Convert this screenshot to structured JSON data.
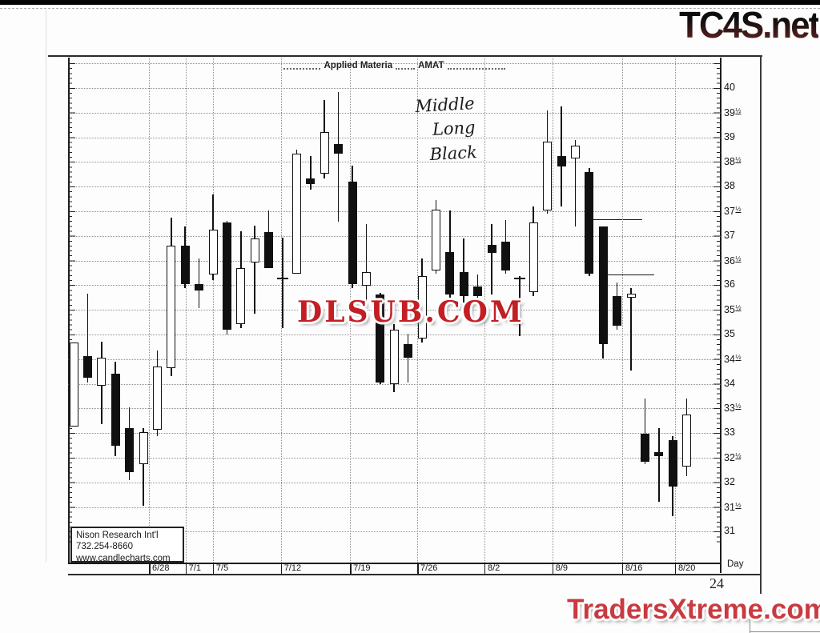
{
  "branding": {
    "tc4s": "TC4S.net",
    "watermark": "DLSUB.COM",
    "traders": "TradersXtreme.com",
    "page_number": "24"
  },
  "annotation": {
    "lines": [
      "Middle",
      "Long",
      "Black"
    ]
  },
  "info_box": {
    "lines": [
      "Nison Research Int'l",
      "732.254-8660",
      "www.candlecharts.com"
    ]
  },
  "chart_data": {
    "type": "candlestick",
    "title": "Applied Materia",
    "ticker": "AMAT",
    "xlabel": "Day",
    "ylim": [
      31,
      40.5
    ],
    "price_step": 0.5,
    "grid": "dotted",
    "y_axis_side": "right",
    "y_labels": [
      "40",
      "39½",
      "39",
      "38½",
      "38",
      "37½",
      "37",
      "36½",
      "36",
      "35½",
      "35",
      "34½",
      "34",
      "33½",
      "33",
      "32½",
      "32",
      "31½",
      "31"
    ],
    "x_labels": [
      {
        "text": "6/28",
        "pos": 0.124
      },
      {
        "text": "7/1",
        "pos": 0.18
      },
      {
        "text": "7/5",
        "pos": 0.222
      },
      {
        "text": "7/12",
        "pos": 0.326
      },
      {
        "text": "7/19",
        "pos": 0.432
      },
      {
        "text": "7/26",
        "pos": 0.535
      },
      {
        "text": "8/2",
        "pos": 0.638
      },
      {
        "text": "8/9",
        "pos": 0.742
      },
      {
        "text": "8/16",
        "pos": 0.849
      },
      {
        "text": "8/20",
        "pos": 0.93
      }
    ],
    "candles": [
      {
        "t": "w",
        "o": 33.13,
        "h": 34.84,
        "l": 33.13,
        "c": 34.84
      },
      {
        "t": "b",
        "o": 34.56,
        "h": 35.83,
        "l": 34.02,
        "c": 34.12
      },
      {
        "t": "w",
        "o": 33.96,
        "h": 34.85,
        "l": 33.18,
        "c": 34.53
      },
      {
        "t": "b",
        "o": 34.2,
        "h": 34.45,
        "l": 32.53,
        "c": 32.74
      },
      {
        "t": "b",
        "o": 33.1,
        "h": 33.53,
        "l": 32.05,
        "c": 32.21
      },
      {
        "t": "w",
        "o": 32.37,
        "h": 33.1,
        "l": 31.53,
        "c": 33.02
      },
      {
        "t": "w",
        "o": 33.06,
        "h": 34.68,
        "l": 32.94,
        "c": 34.35
      },
      {
        "t": "w",
        "o": 34.32,
        "h": 37.37,
        "l": 34.16,
        "c": 36.8
      },
      {
        "t": "b",
        "o": 36.8,
        "h": 37.19,
        "l": 35.94,
        "c": 36.02
      },
      {
        "t": "b",
        "o": 36.02,
        "h": 36.54,
        "l": 35.53,
        "c": 35.89
      },
      {
        "t": "w",
        "o": 36.22,
        "h": 37.84,
        "l": 36.1,
        "c": 37.13
      },
      {
        "t": "b",
        "o": 37.27,
        "h": 37.3,
        "l": 35.0,
        "c": 35.1
      },
      {
        "t": "w",
        "o": 35.21,
        "h": 37.1,
        "l": 35.13,
        "c": 36.35
      },
      {
        "t": "w",
        "o": 36.46,
        "h": 37.21,
        "l": 35.42,
        "c": 36.95
      },
      {
        "t": "b",
        "o": 37.08,
        "h": 37.52,
        "l": 36.35,
        "c": 36.35
      },
      {
        "t": "d",
        "o": 36.14,
        "h": 36.97,
        "l": 35.13,
        "c": 36.14
      },
      {
        "t": "w",
        "o": 36.23,
        "h": 38.75,
        "l": 36.23,
        "c": 38.67
      },
      {
        "t": "b",
        "o": 38.16,
        "h": 38.62,
        "l": 37.94,
        "c": 38.05
      },
      {
        "t": "w",
        "o": 38.26,
        "h": 39.76,
        "l": 38.16,
        "c": 39.11
      },
      {
        "t": "b",
        "o": 38.86,
        "h": 39.92,
        "l": 37.29,
        "c": 38.67
      },
      {
        "t": "b",
        "o": 38.1,
        "h": 38.42,
        "l": 35.94,
        "c": 36.02
      },
      {
        "t": "w",
        "o": 35.99,
        "h": 37.24,
        "l": 35.65,
        "c": 36.27
      },
      {
        "t": "b",
        "o": 35.81,
        "h": 35.85,
        "l": 34.0,
        "c": 34.03
      },
      {
        "t": "w",
        "o": 34.0,
        "h": 35.21,
        "l": 33.83,
        "c": 35.1
      },
      {
        "t": "b",
        "o": 34.81,
        "h": 35.02,
        "l": 34.03,
        "c": 34.53
      },
      {
        "t": "w",
        "o": 34.92,
        "h": 36.54,
        "l": 34.84,
        "c": 36.19
      },
      {
        "t": "w",
        "o": 36.3,
        "h": 37.73,
        "l": 36.23,
        "c": 37.53
      },
      {
        "t": "b",
        "o": 36.68,
        "h": 37.52,
        "l": 35.62,
        "c": 35.81
      },
      {
        "t": "b",
        "o": 36.27,
        "h": 36.95,
        "l": 35.65,
        "c": 35.78
      },
      {
        "t": "b",
        "o": 35.97,
        "h": 36.22,
        "l": 35.65,
        "c": 35.78
      },
      {
        "t": "b",
        "o": 36.82,
        "h": 37.24,
        "l": 35.81,
        "c": 36.66
      },
      {
        "t": "b",
        "o": 36.88,
        "h": 37.32,
        "l": 36.24,
        "c": 36.3
      },
      {
        "t": "d",
        "o": 36.14,
        "h": 36.19,
        "l": 34.97,
        "c": 36.14
      },
      {
        "t": "w",
        "o": 35.86,
        "h": 37.6,
        "l": 35.78,
        "c": 37.27
      },
      {
        "t": "w",
        "o": 37.52,
        "h": 39.55,
        "l": 37.45,
        "c": 38.91
      },
      {
        "t": "b",
        "o": 38.62,
        "h": 39.63,
        "l": 37.6,
        "c": 38.41
      },
      {
        "t": "w",
        "o": 38.57,
        "h": 38.94,
        "l": 37.19,
        "c": 38.83
      },
      {
        "t": "b",
        "o": 38.3,
        "h": 38.38,
        "l": 36.19,
        "c": 36.23
      },
      {
        "t": "b",
        "o": 37.19,
        "h": 37.19,
        "l": 34.51,
        "c": 34.81
      },
      {
        "t": "b",
        "o": 35.78,
        "h": 36.05,
        "l": 35.1,
        "c": 35.18
      },
      {
        "t": "w",
        "o": 35.75,
        "h": 35.94,
        "l": 34.27,
        "c": 35.83
      },
      {
        "t": "b",
        "o": 32.99,
        "h": 33.7,
        "l": 32.37,
        "c": 32.42
      },
      {
        "t": "b",
        "o": 32.61,
        "h": 33.1,
        "l": 31.61,
        "c": 32.53
      },
      {
        "t": "b",
        "o": 32.86,
        "h": 32.94,
        "l": 31.31,
        "c": 31.92
      },
      {
        "t": "w",
        "o": 32.32,
        "h": 33.7,
        "l": 32.13,
        "c": 33.38
      }
    ],
    "ref_lines": [
      {
        "price": 37.34,
        "x1": 0.8,
        "x2": 0.88
      },
      {
        "price": 36.22,
        "x1": 0.818,
        "x2": 0.898
      }
    ]
  }
}
